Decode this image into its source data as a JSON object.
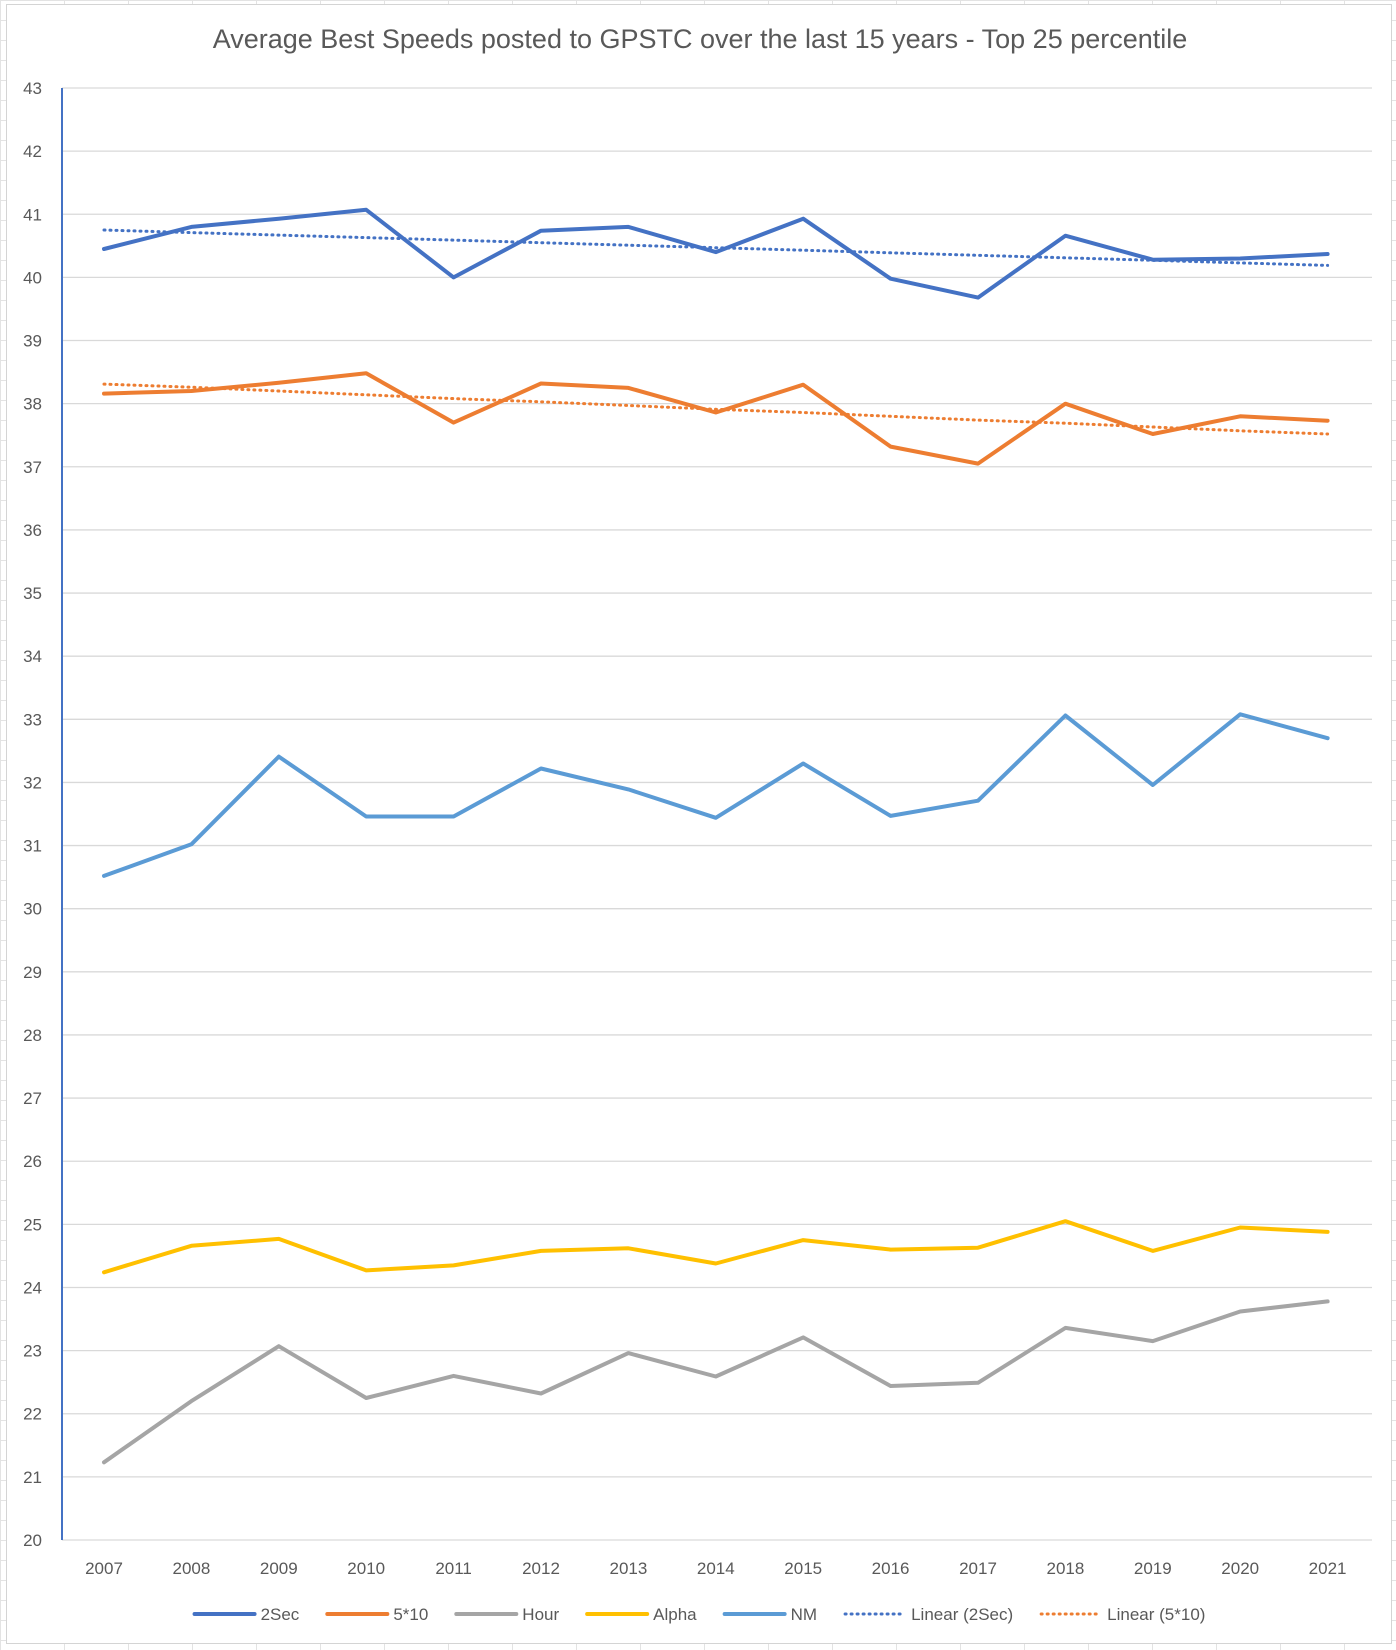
{
  "chart_data": {
    "type": "line",
    "title": "Average Best Speeds posted to GPSTC over the last 15 years - Top 25 percentile",
    "xlabel": "",
    "ylabel": "",
    "x": [
      "2007",
      "2008",
      "2009",
      "2010",
      "2011",
      "2012",
      "2013",
      "2014",
      "2015",
      "2016",
      "2017",
      "2018",
      "2019",
      "2020",
      "2021"
    ],
    "ylim": [
      20,
      43
    ],
    "ytick_step": 1,
    "grid": true,
    "legend_position": "bottom",
    "series": [
      {
        "name": "2Sec",
        "color": "#4472C4",
        "style": "solid",
        "values": [
          40.45,
          40.8,
          40.93,
          41.07,
          40.0,
          40.74,
          40.8,
          40.4,
          40.93,
          39.98,
          39.68,
          40.66,
          40.28,
          40.3,
          40.37
        ]
      },
      {
        "name": "5*10",
        "color": "#ED7D31",
        "style": "solid",
        "values": [
          38.16,
          38.2,
          38.33,
          38.48,
          37.7,
          38.32,
          38.25,
          37.86,
          38.3,
          37.32,
          37.05,
          38.0,
          37.52,
          37.8,
          37.73
        ]
      },
      {
        "name": "Hour",
        "color": "#A5A5A5",
        "style": "solid",
        "values": [
          21.23,
          22.2,
          23.07,
          22.25,
          22.6,
          22.32,
          22.96,
          22.59,
          23.21,
          22.44,
          22.49,
          23.36,
          23.15,
          23.62,
          23.78
        ]
      },
      {
        "name": "Alpha",
        "color": "#FFC000",
        "style": "solid",
        "values": [
          24.24,
          24.66,
          24.77,
          24.27,
          24.35,
          24.58,
          24.62,
          24.38,
          24.75,
          24.6,
          24.63,
          25.05,
          24.58,
          24.95,
          24.88
        ]
      },
      {
        "name": "NM",
        "color": "#5B9BD5",
        "style": "solid",
        "values": [
          30.52,
          31.02,
          32.41,
          31.46,
          31.46,
          32.22,
          31.89,
          31.44,
          32.3,
          31.47,
          31.71,
          33.06,
          31.96,
          33.08,
          32.7
        ]
      },
      {
        "name": "Linear (2Sec)",
        "color": "#4472C4",
        "style": "dotted",
        "values": [
          40.75,
          40.71,
          40.67,
          40.63,
          40.59,
          40.55,
          40.51,
          40.47,
          40.43,
          40.39,
          40.35,
          40.31,
          40.27,
          40.23,
          40.19
        ]
      },
      {
        "name": "Linear (5*10)",
        "color": "#ED7D31",
        "style": "dotted",
        "values": [
          38.31,
          38.26,
          38.2,
          38.14,
          38.08,
          38.03,
          37.97,
          37.91,
          37.86,
          37.8,
          37.74,
          37.69,
          37.63,
          37.57,
          37.52
        ]
      }
    ]
  }
}
